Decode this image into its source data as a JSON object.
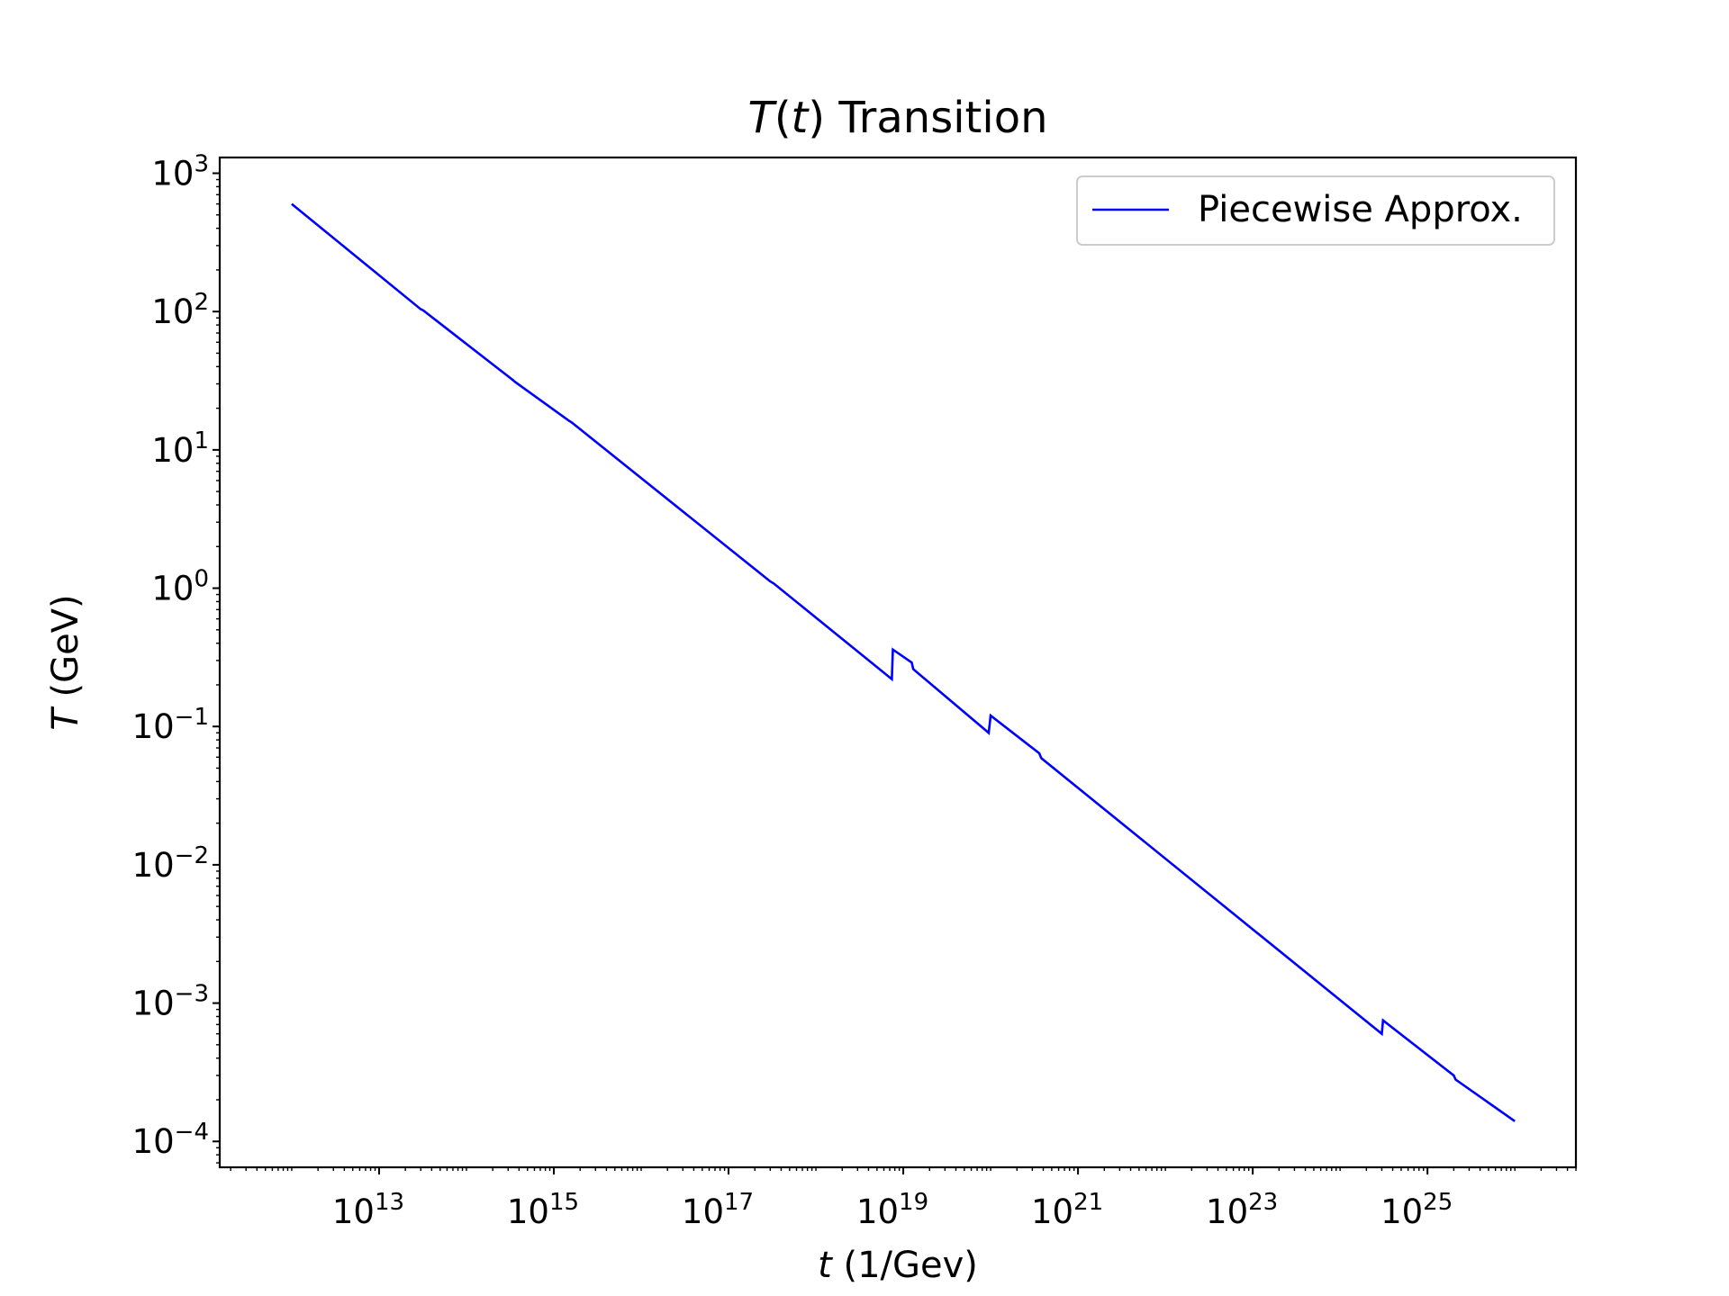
{
  "chart_data": {
    "type": "line",
    "title_parts": {
      "var": "T",
      "open": "(",
      "arg": "t",
      "close": ")",
      "rest": " Transition"
    },
    "xlabel_parts": {
      "var": "t",
      "rest": " (1/Gev)"
    },
    "ylabel_parts": {
      "var": "T",
      "rest": " (GeV)"
    },
    "x_scale": "log",
    "y_scale": "log",
    "xlim": [
      150000000000.0,
      5e+26
    ],
    "ylim": [
      6.5e-05,
      1300.0
    ],
    "x_ticks": [
      {
        "base": "10",
        "exp": "13",
        "value": 10000000000000.0
      },
      {
        "base": "10",
        "exp": "15",
        "value": 1000000000000000.0
      },
      {
        "base": "10",
        "exp": "17",
        "value": 1e+17
      },
      {
        "base": "10",
        "exp": "19",
        "value": 1e+19
      },
      {
        "base": "10",
        "exp": "21",
        "value": 1e+21
      },
      {
        "base": "10",
        "exp": "23",
        "value": 1e+23
      },
      {
        "base": "10",
        "exp": "25",
        "value": 1e+25
      }
    ],
    "y_ticks": [
      {
        "base": "10",
        "exp": "3",
        "value": 1000.0
      },
      {
        "base": "10",
        "exp": "2",
        "value": 100.0
      },
      {
        "base": "10",
        "exp": "1",
        "value": 10.0
      },
      {
        "base": "10",
        "exp": "0",
        "value": 1.0
      },
      {
        "base": "10",
        "exp": "−1",
        "value": 0.1
      },
      {
        "base": "10",
        "exp": "−2",
        "value": 0.01
      },
      {
        "base": "10",
        "exp": "−3",
        "value": 0.001
      },
      {
        "base": "10",
        "exp": "−4",
        "value": 0.0001
      }
    ],
    "grid": false,
    "legend_position": "top-right",
    "series": [
      {
        "name": "Piecewise Approx.",
        "color": "#0000ff",
        "points": [
          [
            1000000000000.0,
            600
          ],
          [
            30000000000000.0,
            104
          ],
          [
            32000000000000.0,
            102
          ],
          [
            340000000000000.0,
            32
          ],
          [
            360000000000000.0,
            31
          ],
          [
            1500000000000000.0,
            16.2
          ],
          [
            1600000000000000.0,
            15.8
          ],
          [
            3e+17,
            1.12
          ],
          [
            3.3e+17,
            1.08
          ],
          [
            7.4e+18,
            0.22
          ],
          [
            7.6e+18,
            0.36
          ],
          [
            1.25e+19,
            0.29
          ],
          [
            1.3e+19,
            0.26
          ],
          [
            9.5e+19,
            0.09
          ],
          [
            1e+20,
            0.12
          ],
          [
            3.6e+20,
            0.064
          ],
          [
            3.8e+20,
            0.059
          ],
          [
            3e+24,
            0.0006
          ],
          [
            3.1e+24,
            0.00075
          ],
          [
            2e+25,
            0.0003
          ],
          [
            2.1e+25,
            0.00028
          ],
          [
            1e+26,
            0.00014
          ]
        ]
      }
    ]
  }
}
